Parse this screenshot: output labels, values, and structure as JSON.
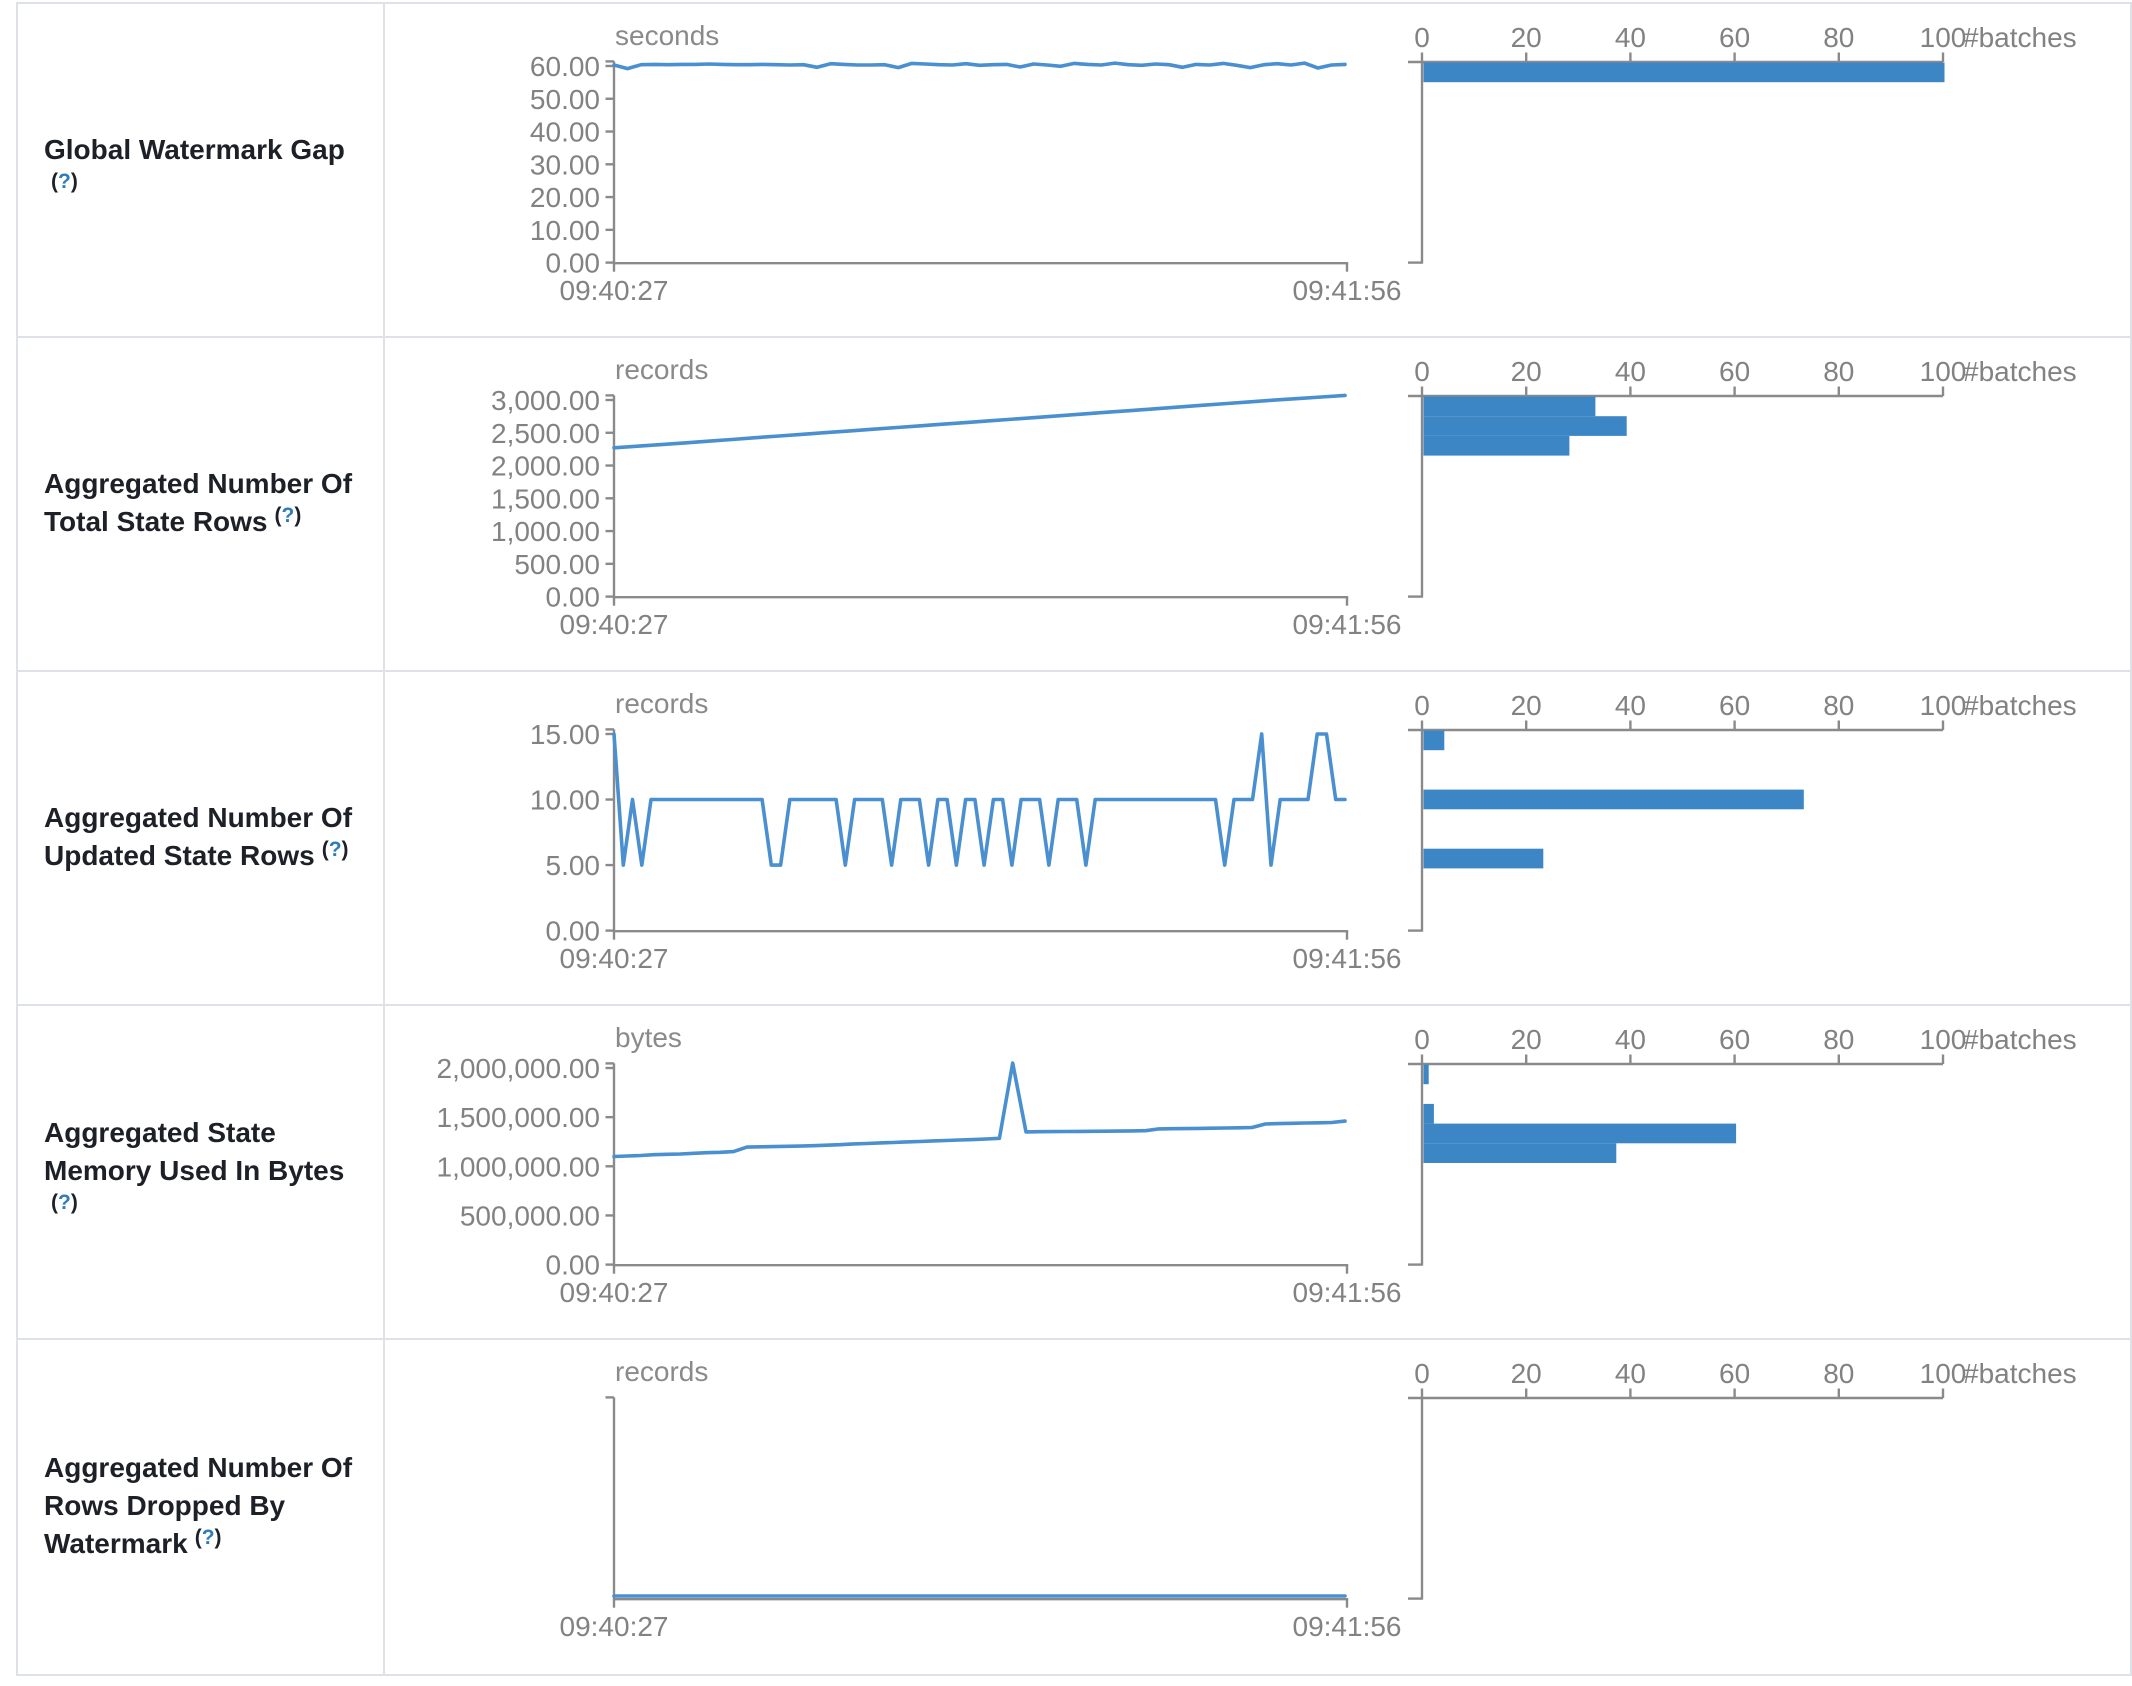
{
  "accent_colors": {
    "line": "#4a90d0",
    "bar": "#3d86c5",
    "axis": "#8a8a8a",
    "tick_text": "#828282",
    "label_text": "#1d2127",
    "help_question": "#2e7db8",
    "table_border": "#dee2e6"
  },
  "x_axis": {
    "start_label": "09:40:27",
    "end_label": "09:41:56"
  },
  "histogram_axis": {
    "tick_labels": [
      "0",
      "20",
      "40",
      "60",
      "80",
      "100"
    ],
    "tick_values": [
      0,
      20,
      40,
      60,
      80,
      100
    ],
    "unit_label": "#batches",
    "max": 100
  },
  "rows": [
    {
      "label_lines": [
        "Global Watermark Gap"
      ],
      "help": "(?)",
      "help_inline": false,
      "timeline": {
        "type": "line",
        "unit": "seconds",
        "y_tick_labels": [
          "60.00",
          "50.00",
          "40.00",
          "30.00",
          "20.00",
          "10.00",
          "0.00"
        ],
        "y_tick_top_value": 60,
        "values": [
          60.3,
          59.2,
          60.4,
          60.5,
          60.4,
          60.5,
          60.5,
          60.6,
          60.5,
          60.4,
          60.4,
          60.5,
          60.4,
          60.3,
          60.4,
          59.6,
          60.7,
          60.5,
          60.3,
          60.3,
          60.4,
          59.5,
          60.8,
          60.6,
          60.4,
          60.3,
          60.7,
          60.2,
          60.4,
          60.5,
          59.7,
          60.6,
          60.3,
          59.9,
          60.8,
          60.5,
          60.3,
          60.9,
          60.4,
          60.2,
          60.6,
          60.4,
          59.6,
          60.5,
          60.3,
          60.8,
          60.2,
          59.5,
          60.4,
          60.7,
          60.3,
          60.9,
          59.4,
          60.3,
          60.5
        ]
      },
      "histogram": {
        "type": "bar",
        "unit": "#batches",
        "bars": [
          {
            "slot": 0,
            "count": 100
          }
        ]
      }
    },
    {
      "label_lines": [
        "Aggregated Number Of",
        "Total State Rows"
      ],
      "help": "(?)",
      "help_inline": true,
      "timeline": {
        "type": "line",
        "unit": "records",
        "y_tick_labels": [
          "3,000.00",
          "2,500.00",
          "2,000.00",
          "1,500.00",
          "1,000.00",
          "500.00",
          "0.00"
        ],
        "y_tick_top_value": 3000,
        "values": [
          2270,
          2295,
          2320,
          2345,
          2372,
          2398,
          2424,
          2450,
          2476,
          2502,
          2528,
          2554,
          2580,
          2606,
          2632,
          2658,
          2684,
          2710,
          2736,
          2762,
          2790,
          2816,
          2842,
          2868,
          2894,
          2920,
          2946,
          2972,
          2998,
          3022,
          3046,
          3070
        ]
      },
      "histogram": {
        "type": "bar",
        "unit": "#batches",
        "bars": [
          {
            "slot": 0,
            "count": 33
          },
          {
            "slot": 1,
            "count": 39
          },
          {
            "slot": 2,
            "count": 28
          }
        ]
      }
    },
    {
      "label_lines": [
        "Aggregated Number Of",
        "Updated State Rows"
      ],
      "help": "(?)",
      "help_inline": true,
      "timeline": {
        "type": "line",
        "unit": "records",
        "y_tick_labels": [
          "15.00",
          "10.00",
          "5.00",
          "0.00"
        ],
        "y_tick_top_value": 15,
        "values": [
          15,
          5,
          10,
          5,
          10,
          10,
          10,
          10,
          10,
          10,
          10,
          10,
          10,
          10,
          10,
          10,
          10,
          5,
          5,
          10,
          10,
          10,
          10,
          10,
          10,
          5,
          10,
          10,
          10,
          10,
          5,
          10,
          10,
          10,
          5,
          10,
          10,
          5,
          10,
          10,
          5,
          10,
          10,
          5,
          10,
          10,
          10,
          5,
          10,
          10,
          10,
          5,
          10,
          10,
          10,
          10,
          10,
          10,
          10,
          10,
          10,
          10,
          10,
          10,
          10,
          10,
          5,
          10,
          10,
          10,
          15,
          5,
          10,
          10,
          10,
          10,
          15,
          15,
          10,
          10
        ]
      },
      "histogram": {
        "type": "bar",
        "unit": "#batches",
        "bars": [
          {
            "slot": 0,
            "count": 4
          },
          {
            "slot": 3,
            "count": 73
          },
          {
            "slot": 6,
            "count": 23
          }
        ]
      }
    },
    {
      "label_lines": [
        "Aggregated State",
        "Memory Used In Bytes"
      ],
      "help": "(?)",
      "help_inline": false,
      "timeline": {
        "type": "line",
        "unit": "bytes",
        "y_tick_labels": [
          "2,000,000.00",
          "1,500,000.00",
          "1,000,000.00",
          "500,000.00",
          "0.00"
        ],
        "y_tick_top_value": 2000000,
        "values": [
          1100000,
          1105000,
          1110000,
          1118000,
          1122000,
          1125000,
          1132000,
          1138000,
          1142000,
          1150000,
          1195000,
          1198000,
          1200000,
          1203000,
          1206000,
          1210000,
          1215000,
          1220000,
          1228000,
          1232000,
          1238000,
          1242000,
          1248000,
          1252000,
          1258000,
          1262000,
          1268000,
          1272000,
          1278000,
          1285000,
          2050000,
          1350000,
          1352000,
          1353000,
          1354000,
          1355000,
          1356000,
          1357000,
          1358000,
          1360000,
          1362000,
          1380000,
          1382000,
          1384000,
          1386000,
          1388000,
          1390000,
          1392000,
          1395000,
          1430000,
          1434000,
          1437000,
          1440000,
          1443000,
          1446000,
          1460000
        ]
      },
      "histogram": {
        "type": "bar",
        "unit": "#batches",
        "bars": [
          {
            "slot": 0,
            "count": 1
          },
          {
            "slot": 2,
            "count": 2
          },
          {
            "slot": 3,
            "count": 60
          },
          {
            "slot": 4,
            "count": 37
          }
        ]
      }
    },
    {
      "label_lines": [
        "Aggregated Number Of",
        "Rows Dropped By",
        "Watermark"
      ],
      "help": "(?)",
      "help_inline": true,
      "timeline": {
        "type": "line",
        "unit": "records",
        "y_tick_labels": [],
        "y_tick_top_value": null,
        "values": [
          0,
          0,
          0,
          0,
          0,
          0,
          0,
          0,
          0,
          0
        ]
      },
      "histogram": {
        "type": "bar",
        "unit": "#batches",
        "bars": []
      }
    }
  ]
}
